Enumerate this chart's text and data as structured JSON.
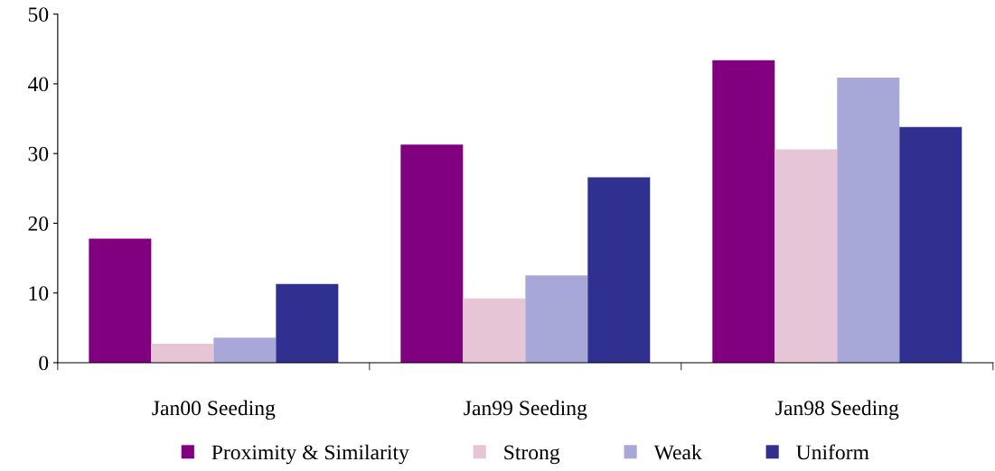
{
  "chart_data": {
    "type": "bar",
    "categories": [
      "Jan00 Seeding",
      "Jan99 Seeding",
      "Jan98 Seeding"
    ],
    "series": [
      {
        "name": "Proximity & Similarity",
        "color": "#800080",
        "values": [
          17.8,
          31.3,
          43.4
        ]
      },
      {
        "name": "Strong",
        "color": "#e6c6d6",
        "values": [
          2.7,
          9.2,
          30.6
        ]
      },
      {
        "name": "Weak",
        "color": "#a8a8d8",
        "values": [
          3.6,
          12.5,
          40.9
        ]
      },
      {
        "name": "Uniform",
        "color": "#303090",
        "values": [
          11.3,
          26.6,
          33.8
        ]
      }
    ],
    "ylim": [
      0,
      50
    ],
    "yticks": [
      0,
      10,
      20,
      30,
      40,
      50
    ],
    "grid": false,
    "legend": "bottom"
  }
}
